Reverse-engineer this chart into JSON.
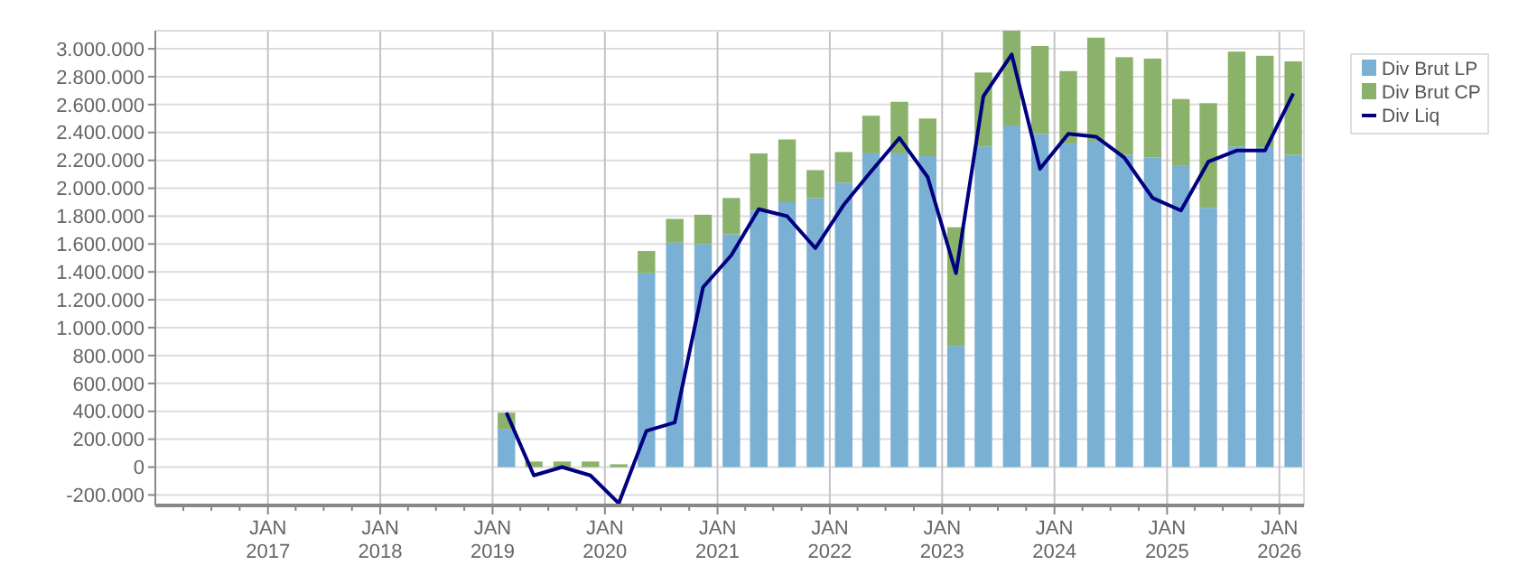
{
  "chart_data": {
    "type": "bar",
    "stacked": true,
    "x": [
      "2019-02-15",
      "2019-05-15",
      "2019-08-15",
      "2019-11-15",
      "2020-02-15",
      "2020-05-15",
      "2020-08-15",
      "2020-11-15",
      "2021-02-15",
      "2021-05-15",
      "2021-08-15",
      "2021-11-15",
      "2022-02-15",
      "2022-05-15",
      "2022-08-15",
      "2022-11-15",
      "2023-02-15",
      "2023-05-15",
      "2023-08-15",
      "2023-11-15",
      "2024-02-15",
      "2024-05-15",
      "2024-08-15",
      "2024-11-15",
      "2025-02-15",
      "2025-05-15",
      "2025-08-15",
      "2025-11-15",
      "2026-02-15"
    ],
    "series": [
      {
        "name": "Div Brut LP",
        "color": "#7ab0d4",
        "values": [
          270000,
          0,
          0,
          0,
          0,
          1390000,
          1610000,
          1600000,
          1670000,
          1840000,
          1900000,
          1930000,
          2040000,
          2250000,
          2250000,
          2230000,
          870000,
          2300000,
          2450000,
          2390000,
          2320000,
          2340000,
          2240000,
          2220000,
          2160000,
          1860000,
          2300000,
          2290000,
          2240000
        ]
      },
      {
        "name": "Div Brut CP",
        "color": "#8ab26a",
        "values": [
          120000,
          40000,
          40000,
          40000,
          20000,
          160000,
          170000,
          210000,
          260000,
          410000,
          450000,
          200000,
          220000,
          270000,
          370000,
          270000,
          850000,
          530000,
          680000,
          630000,
          520000,
          740000,
          700000,
          710000,
          480000,
          750000,
          680000,
          660000,
          670000
        ]
      },
      {
        "name": "Div Liq",
        "type": "line",
        "color": "#000080",
        "values": [
          390000,
          -60000,
          0,
          -60000,
          -260000,
          260000,
          320000,
          1290000,
          1520000,
          1850000,
          1800000,
          1570000,
          1880000,
          2120000,
          2360000,
          2080000,
          1390000,
          2660000,
          2960000,
          2140000,
          2390000,
          2370000,
          2220000,
          1930000,
          1840000,
          2190000,
          2270000,
          2270000,
          2680000
        ]
      }
    ],
    "xlim": [
      "2016-01-01",
      "2026-03-22"
    ],
    "xticks": [
      {
        "value": "2016-04-01",
        "label": null
      },
      {
        "value": "2016-07-01",
        "label": null
      },
      {
        "value": "2016-10-01",
        "label": null
      },
      {
        "value": "2017-01-01",
        "label": "JAN 2017"
      },
      {
        "value": "2017-04-01",
        "label": null
      },
      {
        "value": "2017-07-01",
        "label": null
      },
      {
        "value": "2017-10-01",
        "label": null
      },
      {
        "value": "2018-01-01",
        "label": "JAN 2018"
      },
      {
        "value": "2018-04-01",
        "label": null
      },
      {
        "value": "2018-07-01",
        "label": null
      },
      {
        "value": "2018-10-01",
        "label": null
      },
      {
        "value": "2019-01-01",
        "label": "JAN 2019"
      },
      {
        "value": "2019-04-01",
        "label": null
      },
      {
        "value": "2019-07-01",
        "label": null
      },
      {
        "value": "2019-10-01",
        "label": null
      },
      {
        "value": "2020-01-01",
        "label": "JAN 2020"
      },
      {
        "value": "2020-04-01",
        "label": null
      },
      {
        "value": "2020-07-01",
        "label": null
      },
      {
        "value": "2020-10-01",
        "label": null
      },
      {
        "value": "2021-01-01",
        "label": "JAN 2021"
      },
      {
        "value": "2021-04-01",
        "label": null
      },
      {
        "value": "2021-07-01",
        "label": null
      },
      {
        "value": "2021-10-01",
        "label": null
      },
      {
        "value": "2022-01-01",
        "label": "JAN 2022"
      },
      {
        "value": "2022-04-01",
        "label": null
      },
      {
        "value": "2022-07-01",
        "label": null
      },
      {
        "value": "2022-10-01",
        "label": null
      },
      {
        "value": "2023-01-01",
        "label": "JAN 2023"
      },
      {
        "value": "2023-04-01",
        "label": null
      },
      {
        "value": "2023-07-01",
        "label": null
      },
      {
        "value": "2023-10-01",
        "label": null
      },
      {
        "value": "2024-01-01",
        "label": "JAN 2024"
      },
      {
        "value": "2024-04-01",
        "label": null
      },
      {
        "value": "2024-07-01",
        "label": null
      },
      {
        "value": "2024-10-01",
        "label": null
      },
      {
        "value": "2025-01-01",
        "label": "JAN 2025"
      },
      {
        "value": "2025-04-01",
        "label": null
      },
      {
        "value": "2025-07-01",
        "label": null
      },
      {
        "value": "2025-10-01",
        "label": null
      },
      {
        "value": "2026-01-01",
        "label": "JAN 2026"
      }
    ],
    "ylim": [
      -275000,
      3130000
    ],
    "yticks": [
      {
        "value": -200000,
        "label": "-200.000"
      },
      {
        "value": 0,
        "label": "0"
      },
      {
        "value": 200000,
        "label": "200.000"
      },
      {
        "value": 400000,
        "label": "400.000"
      },
      {
        "value": 600000,
        "label": "600.000"
      },
      {
        "value": 800000,
        "label": "800.000"
      },
      {
        "value": 1000000,
        "label": "1.000.000"
      },
      {
        "value": 1200000,
        "label": "1.200.000"
      },
      {
        "value": 1400000,
        "label": "1.400.000"
      },
      {
        "value": 1600000,
        "label": "1.600.000"
      },
      {
        "value": 1800000,
        "label": "1.800.000"
      },
      {
        "value": 2000000,
        "label": "2.000.000"
      },
      {
        "value": 2200000,
        "label": "2.200.000"
      },
      {
        "value": 2400000,
        "label": "2.400.000"
      },
      {
        "value": 2600000,
        "label": "2.600.000"
      },
      {
        "value": 2800000,
        "label": "2.800.000"
      },
      {
        "value": 3000000,
        "label": "3.000.000"
      }
    ],
    "grid": true,
    "legend": "top right",
    "marker": "none",
    "line_style": "solid"
  }
}
